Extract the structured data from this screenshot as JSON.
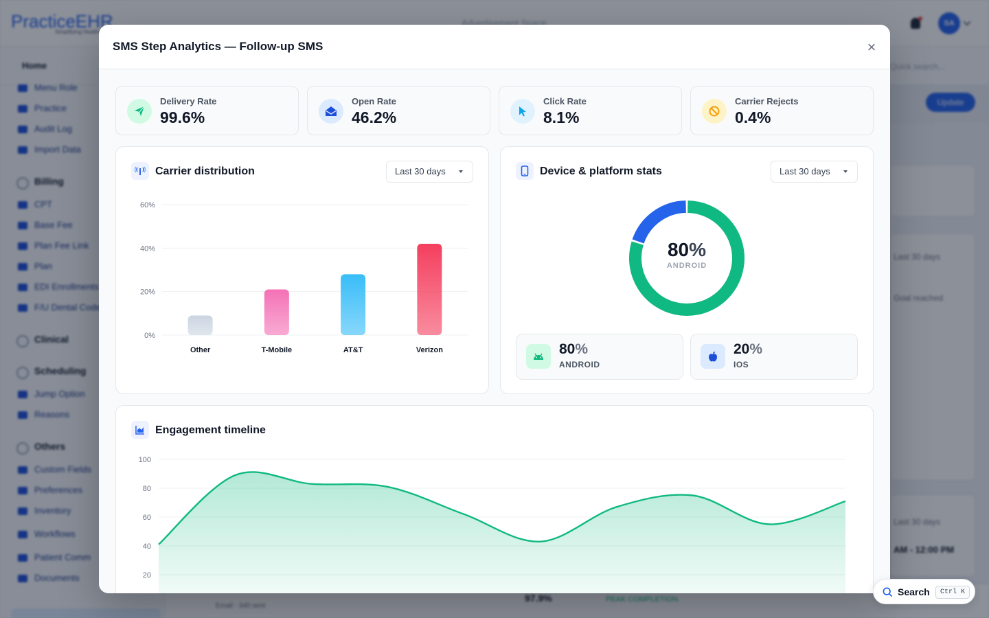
{
  "background": {
    "logo_text": "PracticeEHR",
    "logo_subtitle": "Simplifying Healthcare",
    "ad_text": "Advertisement Space",
    "avatar_initials": "SA",
    "nav_home": "Home",
    "nav_search_placeholder": "Quick search...",
    "sidebar_items": [
      "Menu Role",
      "Practice",
      "Audit Log",
      "Import Data"
    ],
    "billing_group": "Billing",
    "billing_items": [
      "CPT",
      "Base Fee",
      "Plan Fee Link",
      "Plan",
      "EDI Enrollments",
      "F/U Dental Code"
    ],
    "clinical_group": "Clinical",
    "scheduling_group": "Scheduling",
    "scheduling_items": [
      "Jump Option",
      "Reasons"
    ],
    "others_group": "Others",
    "others_items": [
      "Custom Fields",
      "Preferences",
      "Inventory",
      "Workflows",
      "Patient Comm",
      "Documents"
    ],
    "update_button": "Update",
    "right_dropdown": "Last 30 days",
    "goal_text": "Goal reached",
    "time_range": "AM - 12:00 PM",
    "bottom_value": "97.9%",
    "bottom_badge": "PEAK COMPLETION",
    "bottom_sub": "Email · 340 sent"
  },
  "modal": {
    "title": "SMS Step Analytics — Follow-up SMS",
    "close_label": "×"
  },
  "kpis": [
    {
      "label": "Delivery Rate",
      "value": "99.6%",
      "icon": "paper-plane-icon",
      "color": "#10b981",
      "bg": "#d1fae5"
    },
    {
      "label": "Open Rate",
      "value": "46.2%",
      "icon": "envelope-open-icon",
      "color": "#1d4ed8",
      "bg": "#dbeafe"
    },
    {
      "label": "Click Rate",
      "value": "8.1%",
      "icon": "cursor-icon",
      "color": "#0ea5e9",
      "bg": "#e0f2fe"
    },
    {
      "label": "Carrier Rejects",
      "value": "0.4%",
      "icon": "ban-icon",
      "color": "#f59e0b",
      "bg": "#fef3c7"
    }
  ],
  "carrier_card": {
    "title": "Carrier distribution",
    "icon": "signal-tower-icon",
    "range": "Last 30 days"
  },
  "device_card": {
    "title": "Device & platform stats",
    "icon": "mobile-device-icon",
    "range": "Last 30 days",
    "center_value": "80",
    "center_pct": "%",
    "center_label": "ANDROID",
    "platforms": [
      {
        "value": "80",
        "pct": "%",
        "label": "ANDROID",
        "icon": "android-icon",
        "color": "#10b981",
        "bg": "#d1fae5"
      },
      {
        "value": "20",
        "pct": "%",
        "label": "IOS",
        "icon": "apple-icon",
        "color": "#1d4ed8",
        "bg": "#dbeafe"
      }
    ]
  },
  "timeline_card": {
    "title": "Engagement timeline",
    "icon": "area-chart-icon"
  },
  "search_fab": {
    "label": "Search",
    "shortcut": "Ctrl K"
  },
  "chart_data": [
    {
      "type": "bar",
      "title": "Carrier distribution",
      "categories": [
        "Other",
        "T-Mobile",
        "AT&T",
        "Verizon"
      ],
      "values": [
        9,
        21,
        28,
        42
      ],
      "colors": [
        "#cbd5e1",
        "#f472b6",
        "#38bdf8",
        "#f43f5e"
      ],
      "ylim": [
        0,
        60
      ],
      "yticks": [
        0,
        20,
        40,
        60
      ],
      "ytick_labels": [
        "0%",
        "20%",
        "40%",
        "60%"
      ],
      "grid": true
    },
    {
      "type": "pie",
      "title": "Device & platform stats",
      "categories": [
        "Android",
        "iOS"
      ],
      "values": [
        80,
        20
      ],
      "colors": [
        "#10b981",
        "#2563eb"
      ]
    },
    {
      "type": "area",
      "title": "Engagement timeline",
      "x": [
        0,
        1,
        2,
        3,
        4,
        5,
        6,
        7,
        8,
        9
      ],
      "values": [
        41,
        89,
        83,
        81,
        62,
        43,
        67,
        75,
        55,
        71
      ],
      "ylim": [
        0,
        100
      ],
      "yticks": [
        20,
        40,
        60,
        80,
        100
      ],
      "color": "#10b981",
      "grid": true
    }
  ]
}
